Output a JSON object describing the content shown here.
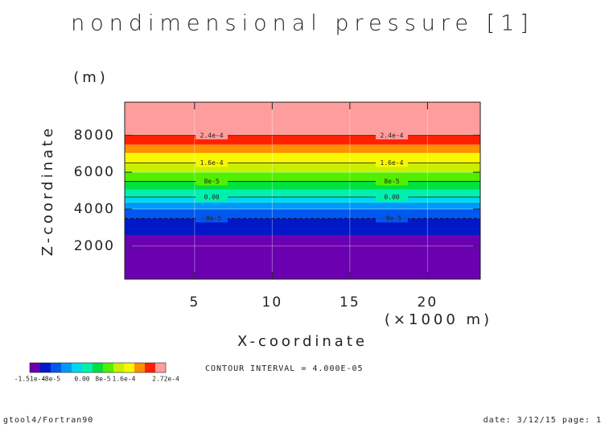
{
  "chart_data": {
    "type": "contour",
    "title": "nondimensional pressure [1]",
    "y_unit": "(m)",
    "y_label": "Z-coordinate",
    "x_label": "X-coordinate",
    "x_unit": "(×1000 m)",
    "xlim": [
      0.5,
      23.4
    ],
    "ylim": [
      200,
      9800
    ],
    "xticks": [
      5,
      10,
      15,
      20
    ],
    "yticks": [
      2000,
      4000,
      6000,
      8000
    ],
    "band_edges": [
      200,
      2600,
      3500,
      4000,
      4350,
      4650,
      5050,
      5500,
      6000,
      6500,
      7050,
      7500,
      8000,
      9800
    ],
    "band_colors": [
      "#6a00b0",
      "#0018c8",
      "#0058f0",
      "#0098f8",
      "#00d8f0",
      "#00f0b0",
      "#00e040",
      "#50f000",
      "#c8f000",
      "#f8f800",
      "#ff9000",
      "#ff2000",
      "#ff9c9c"
    ],
    "contours": [
      {
        "z": 3500,
        "label": "-8e-5",
        "dashed": true
      },
      {
        "z": 4650,
        "label": "0.00",
        "dashed": false
      },
      {
        "z": 5500,
        "label": "8e-5",
        "dashed": false
      },
      {
        "z": 6500,
        "label": "1.6e-4",
        "dashed": false
      },
      {
        "z": 8000,
        "label": "2.4e-4",
        "dashed": false
      }
    ],
    "contour_label_x": [
      6.1,
      17.7
    ],
    "colorbar_labels": [
      "-1.51e-4",
      "-8e-5",
      "0.00",
      "8e-5",
      "1.6e-4",
      "2.72e-4"
    ],
    "contour_interval": "CONTOUR INTERVAL = 4.000E-05",
    "footer_left": "gtool4/Fortran90",
    "footer_right": "date: 3/12/15 page: 1"
  }
}
